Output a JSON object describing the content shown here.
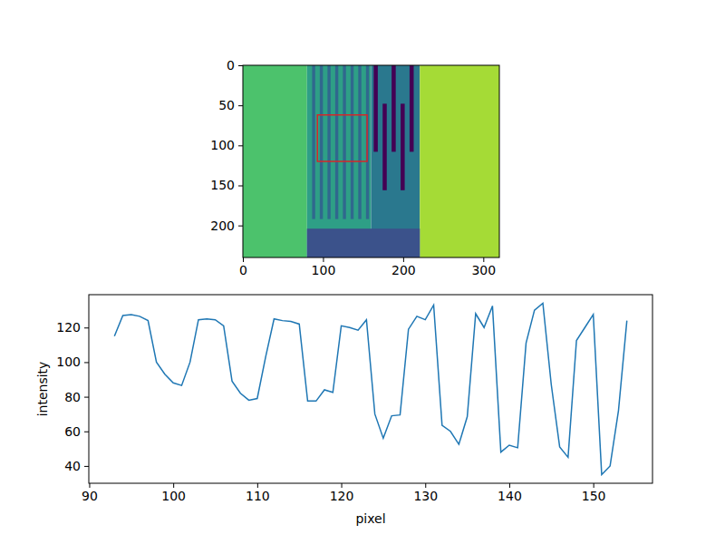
{
  "chart_data": [
    {
      "type": "image",
      "xlim": [
        0,
        320
      ],
      "ylim": [
        240,
        0
      ],
      "xticks": [
        0,
        100,
        200,
        300
      ],
      "yticks": [
        0,
        50,
        100,
        150,
        200
      ],
      "rectangle": {
        "x": [
          93,
          155
        ],
        "y": [
          62,
          120
        ],
        "color": "#d62728"
      }
    },
    {
      "type": "line",
      "x_label": "pixel",
      "y_label": "intensity",
      "color": "#1f77b4",
      "x": [
        93,
        94,
        95,
        96,
        97,
        98,
        99,
        100,
        101,
        102,
        103,
        104,
        105,
        106,
        107,
        108,
        109,
        110,
        111,
        112,
        113,
        114,
        115,
        116,
        117,
        118,
        119,
        120,
        121,
        122,
        123,
        124,
        125,
        126,
        127,
        128,
        129,
        130,
        131,
        132,
        133,
        134,
        135,
        136,
        137,
        138,
        139,
        140,
        141,
        142,
        143,
        144,
        145,
        146,
        147,
        148,
        149,
        150,
        151,
        152,
        153,
        154
      ],
      "values": [
        115,
        127,
        127.5,
        126.5,
        124,
        100,
        93,
        88,
        86.5,
        100,
        124.5,
        125,
        124.5,
        121,
        89,
        82,
        78,
        79,
        103,
        125,
        124,
        123.5,
        122,
        77.5,
        77.5,
        84,
        82.5,
        121,
        120,
        118.5,
        124.5,
        70,
        56,
        69,
        69.5,
        119,
        126.5,
        124.5,
        133,
        63.5,
        60,
        52.5,
        68.5,
        128,
        120,
        132.5,
        48,
        52,
        50.5,
        111,
        130,
        134,
        87,
        51,
        45,
        112.5,
        120,
        127.5,
        35,
        40,
        72,
        124
      ],
      "xlim": [
        89.95,
        157.05
      ],
      "ylim": [
        30,
        139
      ],
      "xticks": [
        90,
        100,
        110,
        120,
        130,
        140,
        150
      ],
      "yticks": [
        40,
        60,
        80,
        100,
        120
      ]
    }
  ]
}
